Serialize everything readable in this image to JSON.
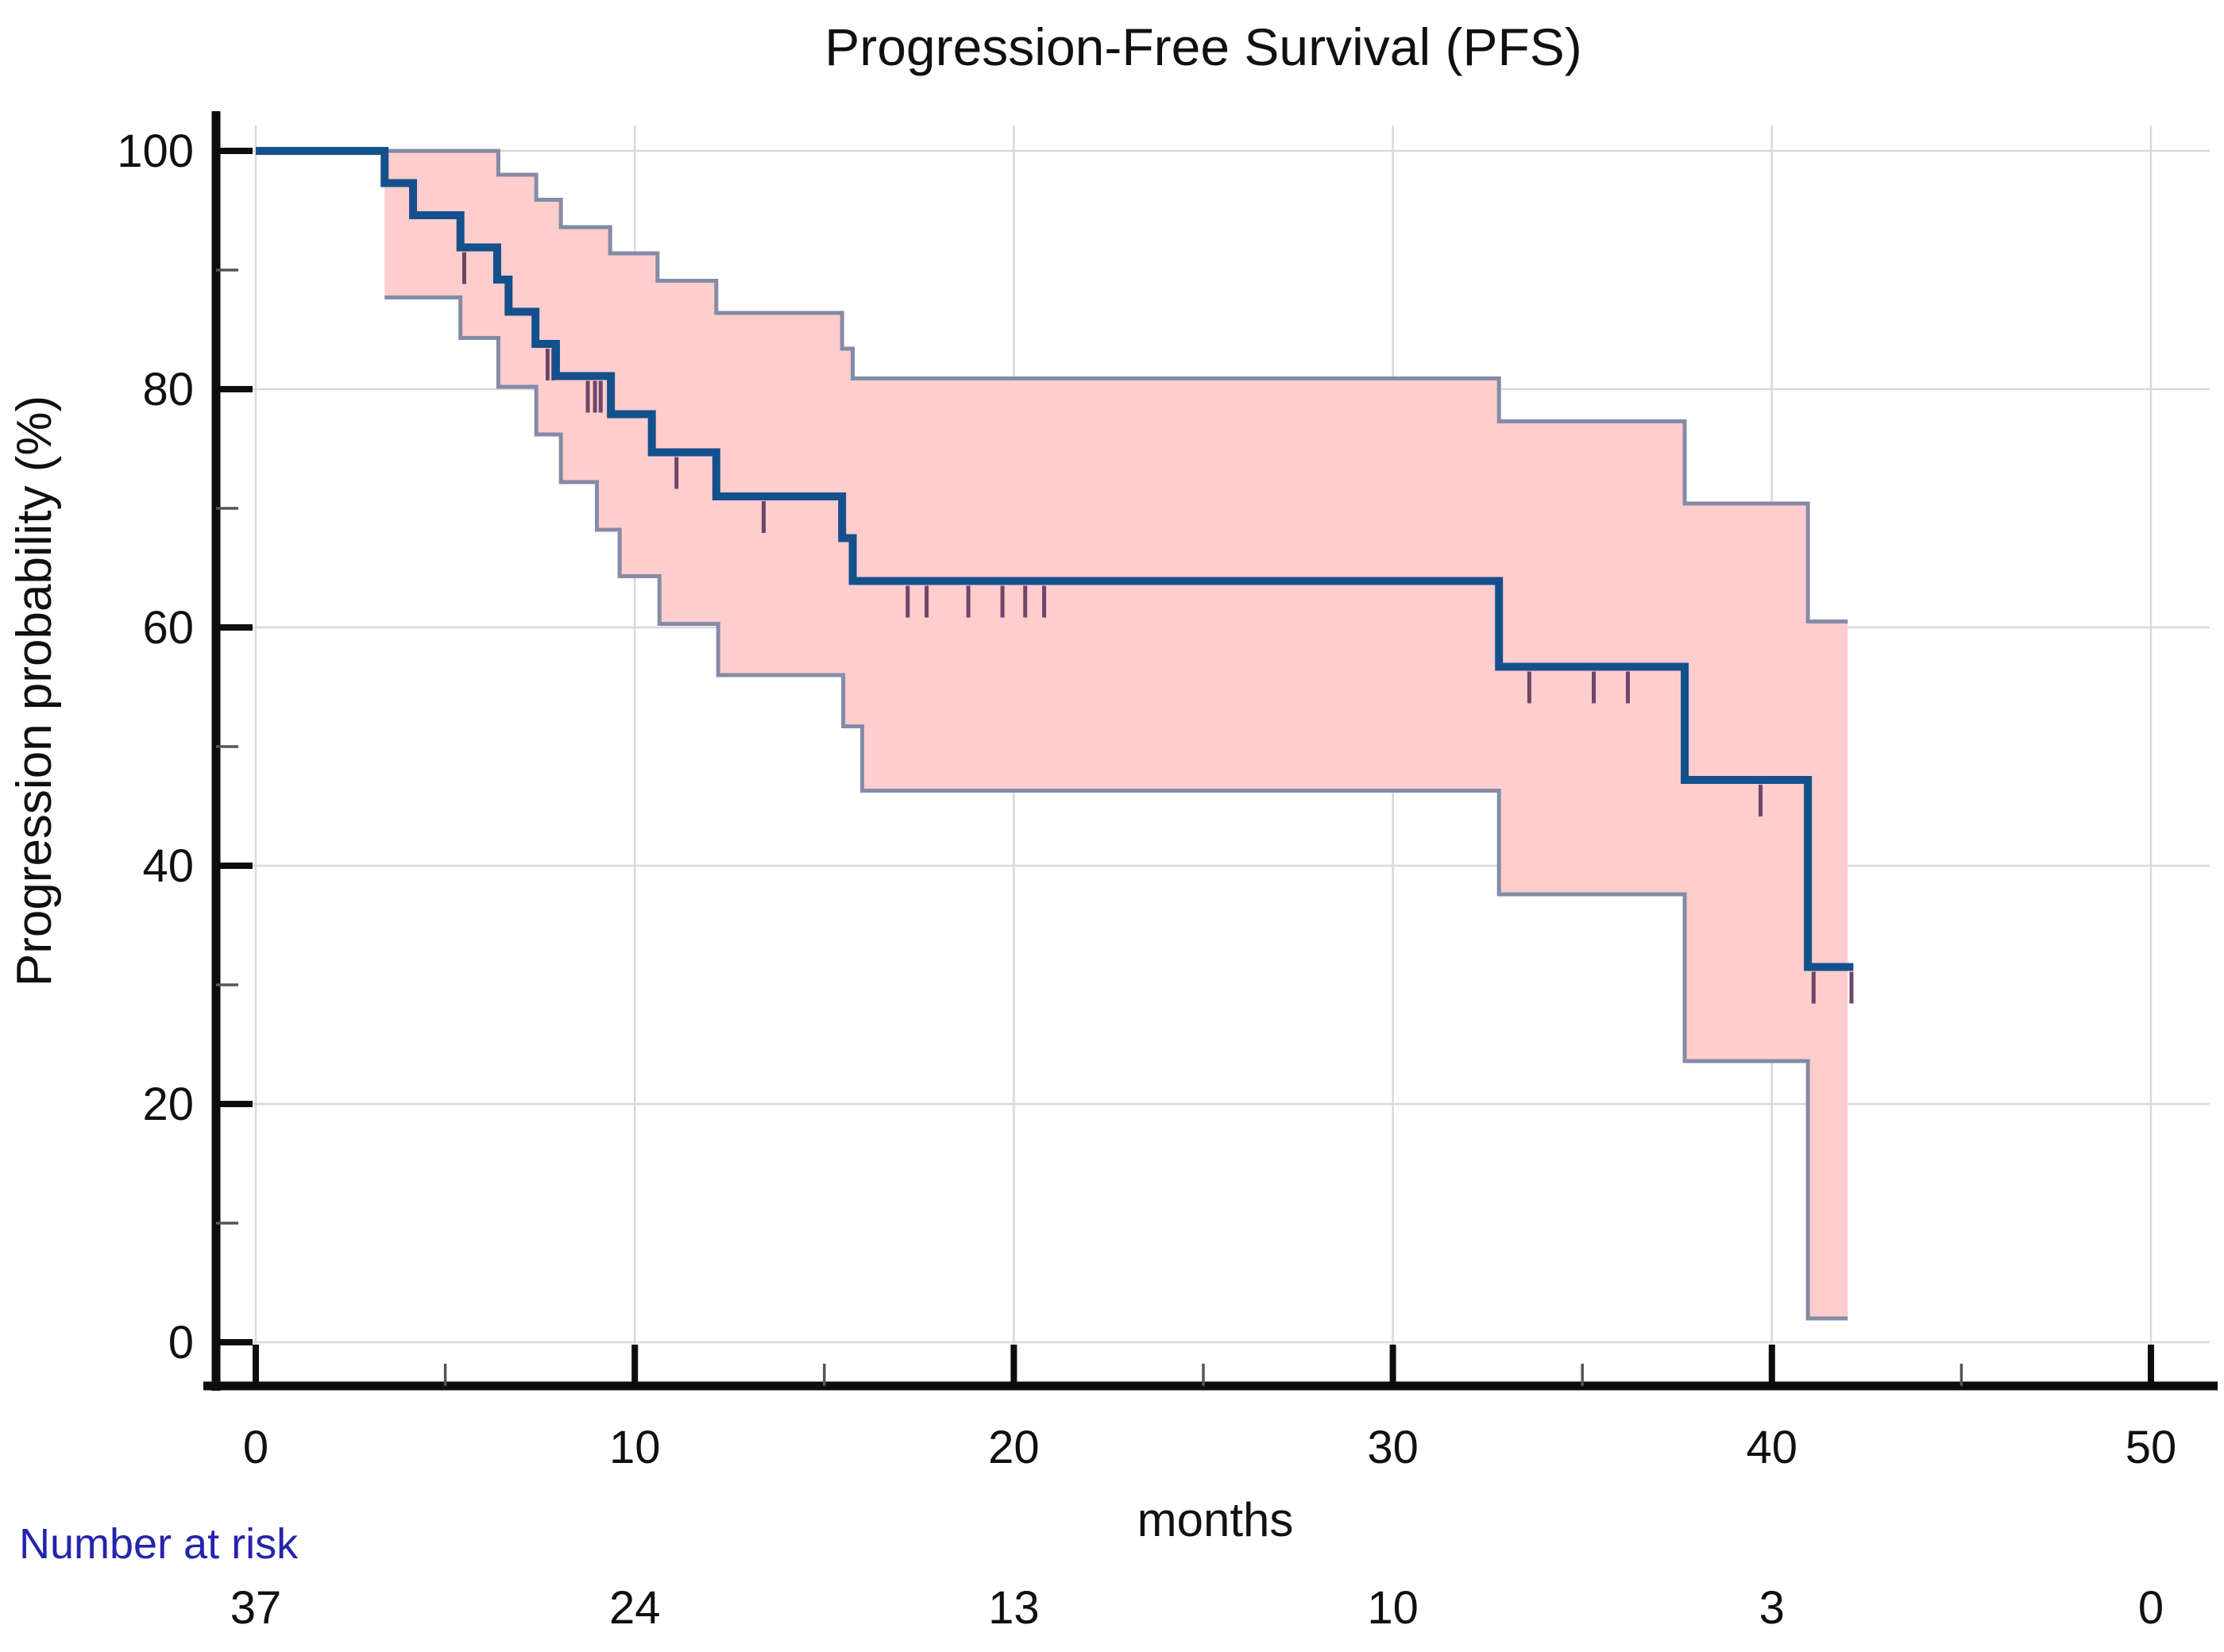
{
  "chart_data": {
    "type": "line",
    "subtype": "kaplan-meier-step",
    "title": "Progression-Free Survival (PFS)",
    "xlabel": "months",
    "ylabel": "Progression probability (%)",
    "xlim": [
      0,
      51.8
    ],
    "ylim": [
      0,
      100
    ],
    "x_major_ticks": [
      0,
      10,
      20,
      30,
      40,
      50
    ],
    "x_minor_ticks": [
      5,
      15,
      25,
      35,
      45
    ],
    "y_major_ticks": [
      100,
      80,
      60,
      40,
      20,
      0
    ],
    "y_minor_ticks": [
      90,
      70,
      50,
      30,
      10
    ],
    "grid": true,
    "legend": "none",
    "colors": {
      "curve": "#14508c",
      "band_fill": "#fecdcd",
      "band_border": "#848ba6",
      "censor": "#6d4668",
      "grid": "#d9d9d9",
      "axis": "#0d0d0d",
      "risk_label": "#2424ad",
      "text": "#101010"
    },
    "series": [
      {
        "name": "PFS",
        "role": "survival-curve",
        "steps": [
          [
            0,
            100
          ],
          [
            3.4,
            97.3
          ],
          [
            4.15,
            94.6
          ],
          [
            5.4,
            91.9
          ],
          [
            6.37,
            89.2
          ],
          [
            6.67,
            86.5
          ],
          [
            7.38,
            83.8
          ],
          [
            7.92,
            81.1
          ],
          [
            9.37,
            77.9
          ],
          [
            10.45,
            74.7
          ],
          [
            12.15,
            71.0
          ],
          [
            15.47,
            67.5
          ],
          [
            15.75,
            63.9
          ],
          [
            32.8,
            56.7
          ],
          [
            37.7,
            47.2
          ],
          [
            40.95,
            31.5
          ]
        ],
        "end_time": 42.15
      },
      {
        "name": "95% CI upper",
        "role": "ci-upper",
        "steps": [
          [
            3.4,
            100
          ],
          [
            6.4,
            98.0
          ],
          [
            7.4,
            95.9
          ],
          [
            8.05,
            93.6
          ],
          [
            9.35,
            91.4
          ],
          [
            10.6,
            89.1
          ],
          [
            12.15,
            86.4
          ],
          [
            15.47,
            83.4
          ],
          [
            15.75,
            80.9
          ],
          [
            32.8,
            77.3
          ],
          [
            37.7,
            70.4
          ],
          [
            40.95,
            60.5
          ]
        ],
        "end_time": 42.0
      },
      {
        "name": "95% CI lower",
        "role": "ci-lower",
        "steps": [
          [
            3.4,
            87.7
          ],
          [
            5.4,
            84.3
          ],
          [
            6.4,
            80.2
          ],
          [
            7.4,
            76.2
          ],
          [
            8.05,
            72.2
          ],
          [
            9.0,
            68.2
          ],
          [
            9.6,
            64.3
          ],
          [
            10.65,
            60.3
          ],
          [
            12.2,
            56.0
          ],
          [
            15.5,
            51.7
          ],
          [
            16.0,
            46.3
          ],
          [
            32.8,
            37.6
          ],
          [
            37.7,
            23.6
          ],
          [
            40.95,
            2.0
          ]
        ],
        "end_time": 42.0
      }
    ],
    "censor_marks": [
      [
        5.5,
        91.9
      ],
      [
        7.7,
        83.8
      ],
      [
        7.85,
        83.8
      ],
      [
        8.76,
        81.1
      ],
      [
        8.95,
        81.1
      ],
      [
        9.1,
        81.1
      ],
      [
        11.1,
        74.7
      ],
      [
        13.4,
        71.0
      ],
      [
        17.2,
        63.9
      ],
      [
        17.7,
        63.9
      ],
      [
        18.8,
        63.9
      ],
      [
        19.7,
        63.9
      ],
      [
        20.3,
        63.9
      ],
      [
        20.8,
        63.9
      ],
      [
        33.6,
        56.7
      ],
      [
        35.3,
        56.7
      ],
      [
        36.2,
        56.7
      ],
      [
        39.7,
        47.2
      ],
      [
        41.1,
        31.5
      ],
      [
        42.1,
        31.5
      ]
    ],
    "number_at_risk": {
      "label": "Number at risk",
      "times": [
        0,
        10,
        20,
        30,
        40,
        50
      ],
      "counts": [
        "37",
        "24",
        "13",
        "10",
        "3",
        "0"
      ]
    }
  }
}
